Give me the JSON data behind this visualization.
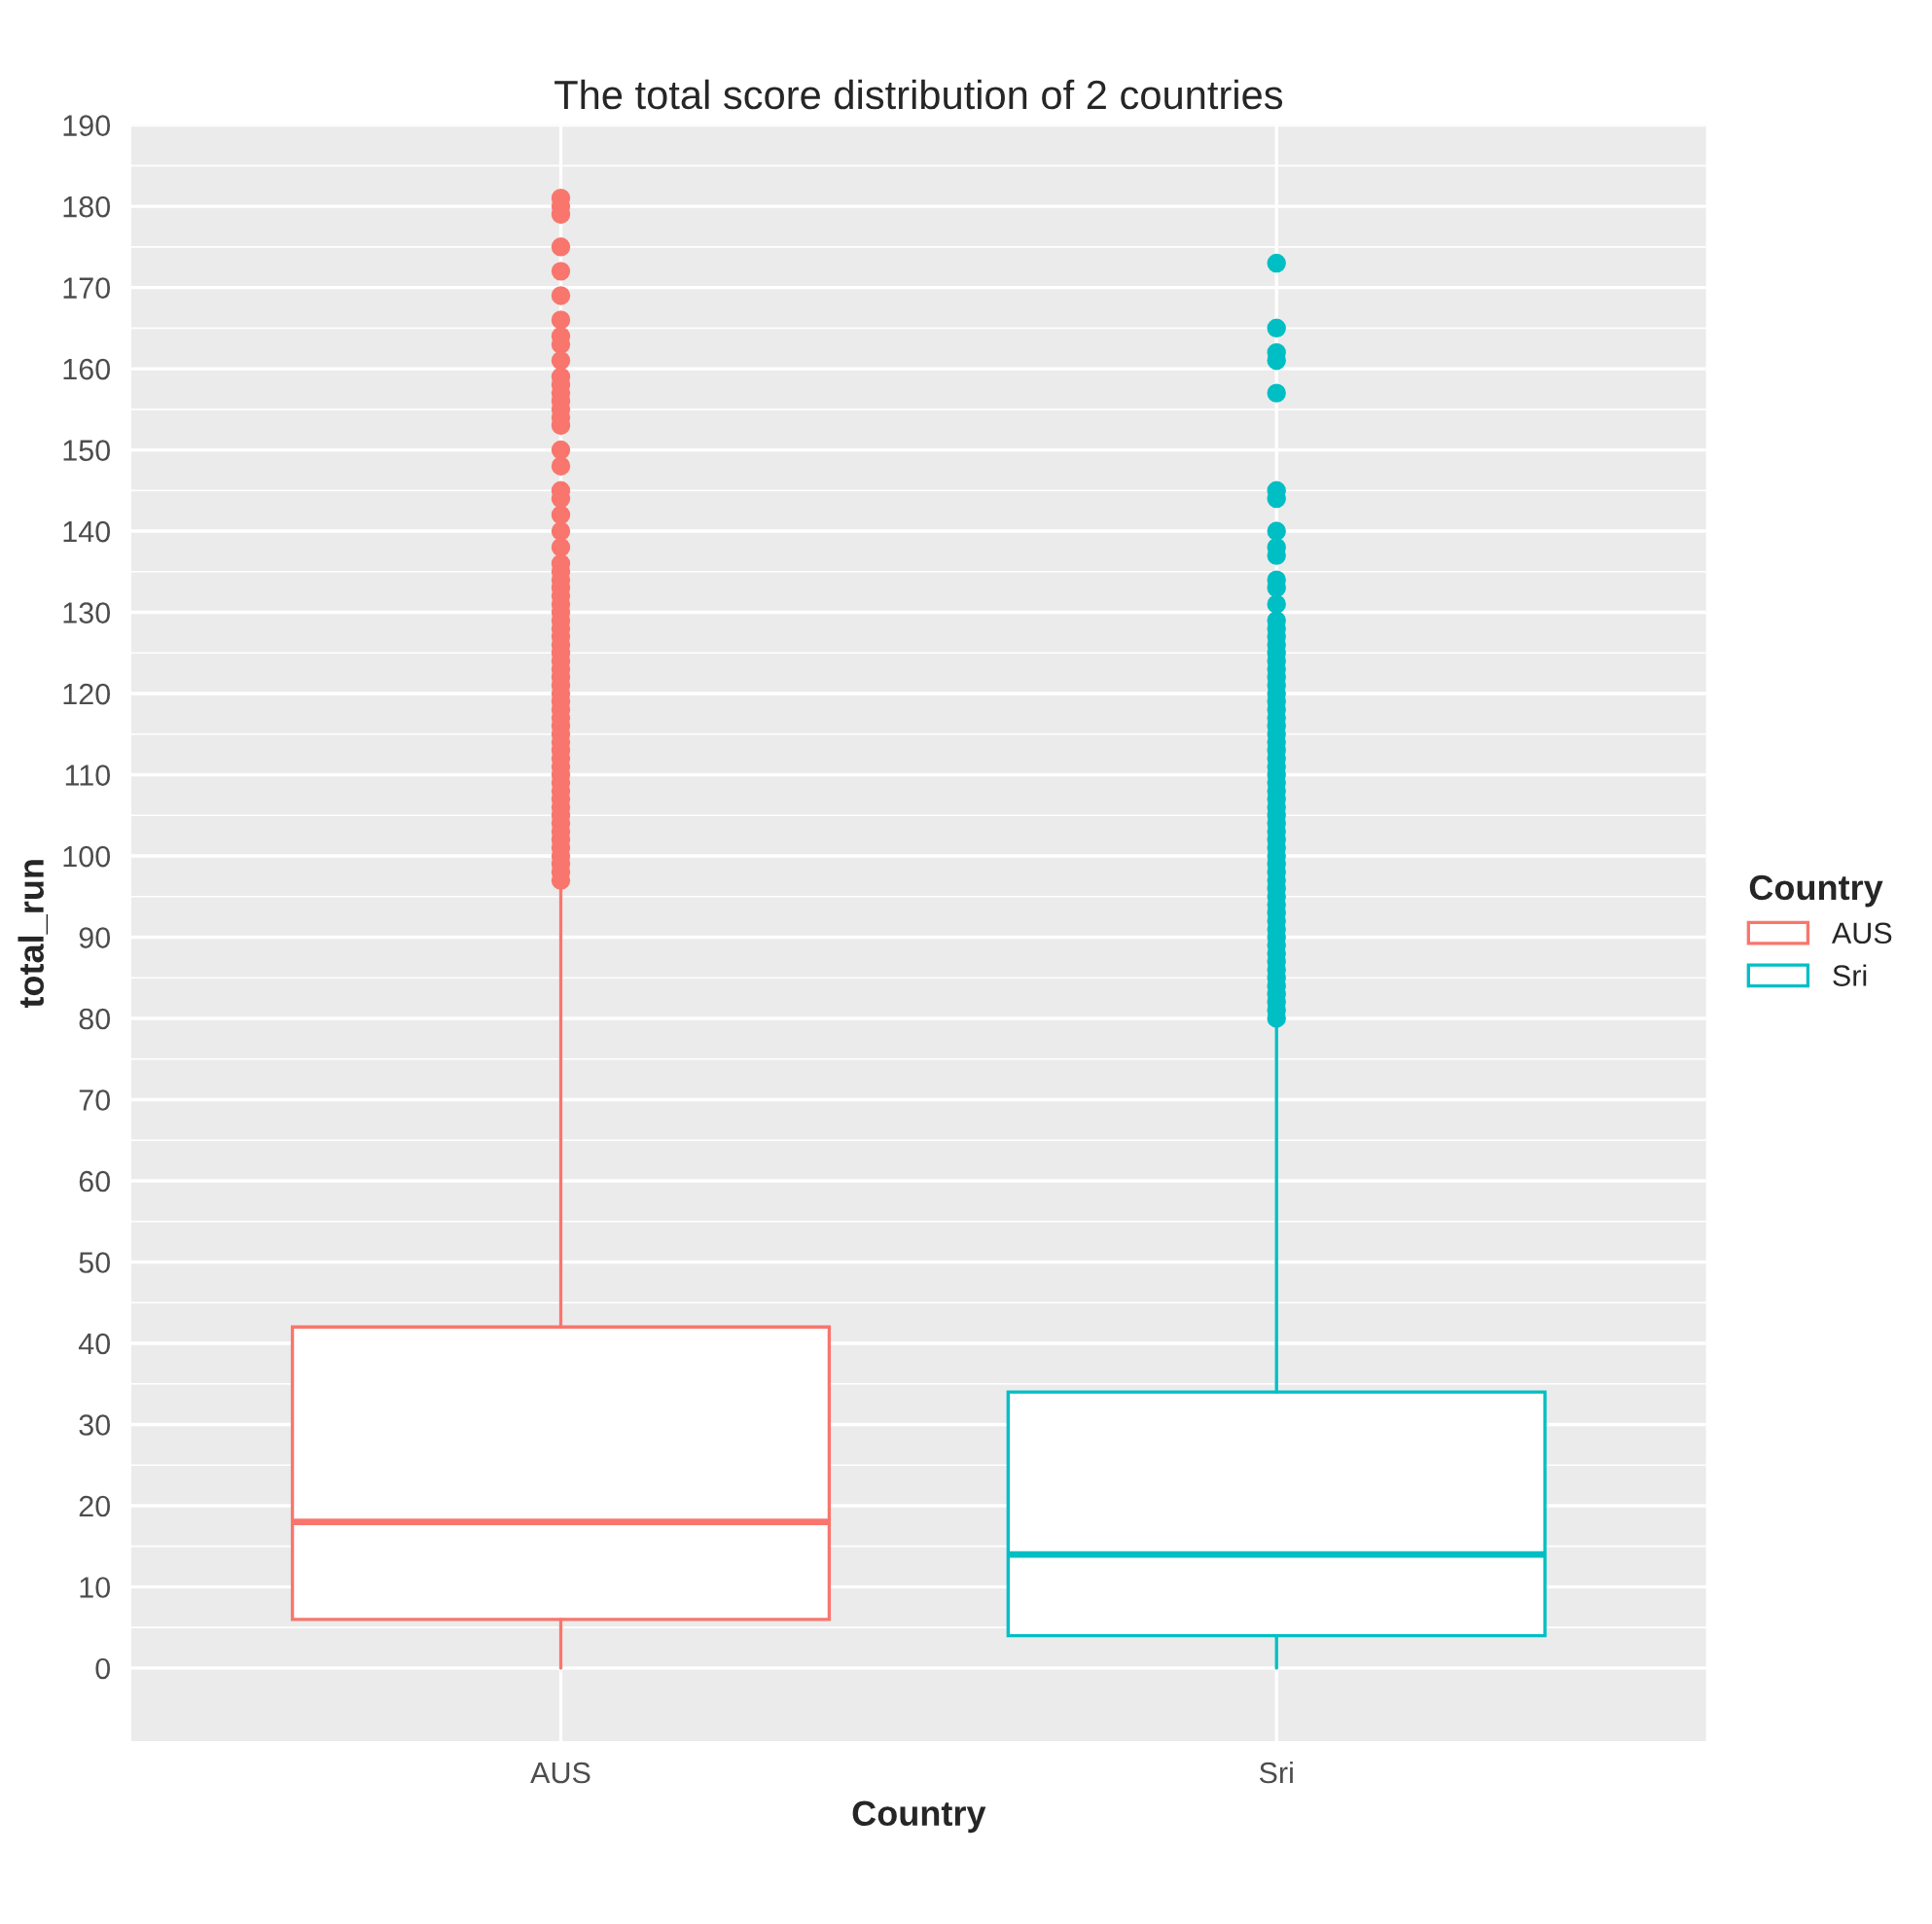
{
  "chart_data": {
    "type": "box",
    "title": "The total score distribution of 2 countries",
    "xlabel": "Country",
    "ylabel": "total_run",
    "legend_title": "Country",
    "legend": "right",
    "grid": true,
    "categories": [
      "AUS",
      "Sri"
    ],
    "ylim": [
      -9,
      190
    ],
    "yticks": [
      0,
      10,
      20,
      30,
      40,
      50,
      60,
      70,
      80,
      90,
      100,
      110,
      120,
      130,
      140,
      150,
      160,
      170,
      180,
      190
    ],
    "series": [
      {
        "name": "AUS",
        "color": "#f8766d",
        "boxes": [
          {
            "low": 0,
            "q1": 6,
            "median": 18,
            "q3": 42,
            "high": 96,
            "outliers": [
              181,
              180,
              179,
              175,
              172,
              169,
              166,
              164,
              163,
              161,
              159,
              158,
              157,
              156,
              155,
              154,
              153,
              150,
              148,
              145,
              144,
              142,
              140,
              138,
              136,
              135,
              134,
              133,
              132,
              131,
              130,
              129,
              128,
              127,
              126,
              125,
              124,
              123,
              122,
              121,
              120,
              119,
              118,
              117,
              116,
              115,
              114,
              113,
              112,
              111,
              110,
              109,
              108,
              107,
              106,
              105,
              104,
              103,
              102,
              101,
              100,
              99,
              98,
              97
            ]
          },
          null
        ]
      },
      {
        "name": "Sri",
        "color": "#00bfc4",
        "boxes": [
          null,
          {
            "low": 0,
            "q1": 4,
            "median": 14,
            "q3": 34,
            "high": 79,
            "outliers": [
              173,
              165,
              162,
              161,
              157,
              145,
              144,
              140,
              138,
              137,
              134,
              133,
              131,
              129,
              128,
              127,
              126,
              125,
              124,
              123,
              122,
              121,
              120,
              119,
              118,
              117,
              116,
              115,
              114,
              113,
              112,
              111,
              110,
              109,
              108,
              107,
              106,
              105,
              104,
              103,
              102,
              101,
              100,
              99,
              98,
              97,
              96,
              95,
              94,
              93,
              92,
              91,
              90,
              89,
              88,
              87,
              86,
              85,
              84,
              83,
              82,
              81,
              80
            ]
          }
        ]
      }
    ]
  }
}
